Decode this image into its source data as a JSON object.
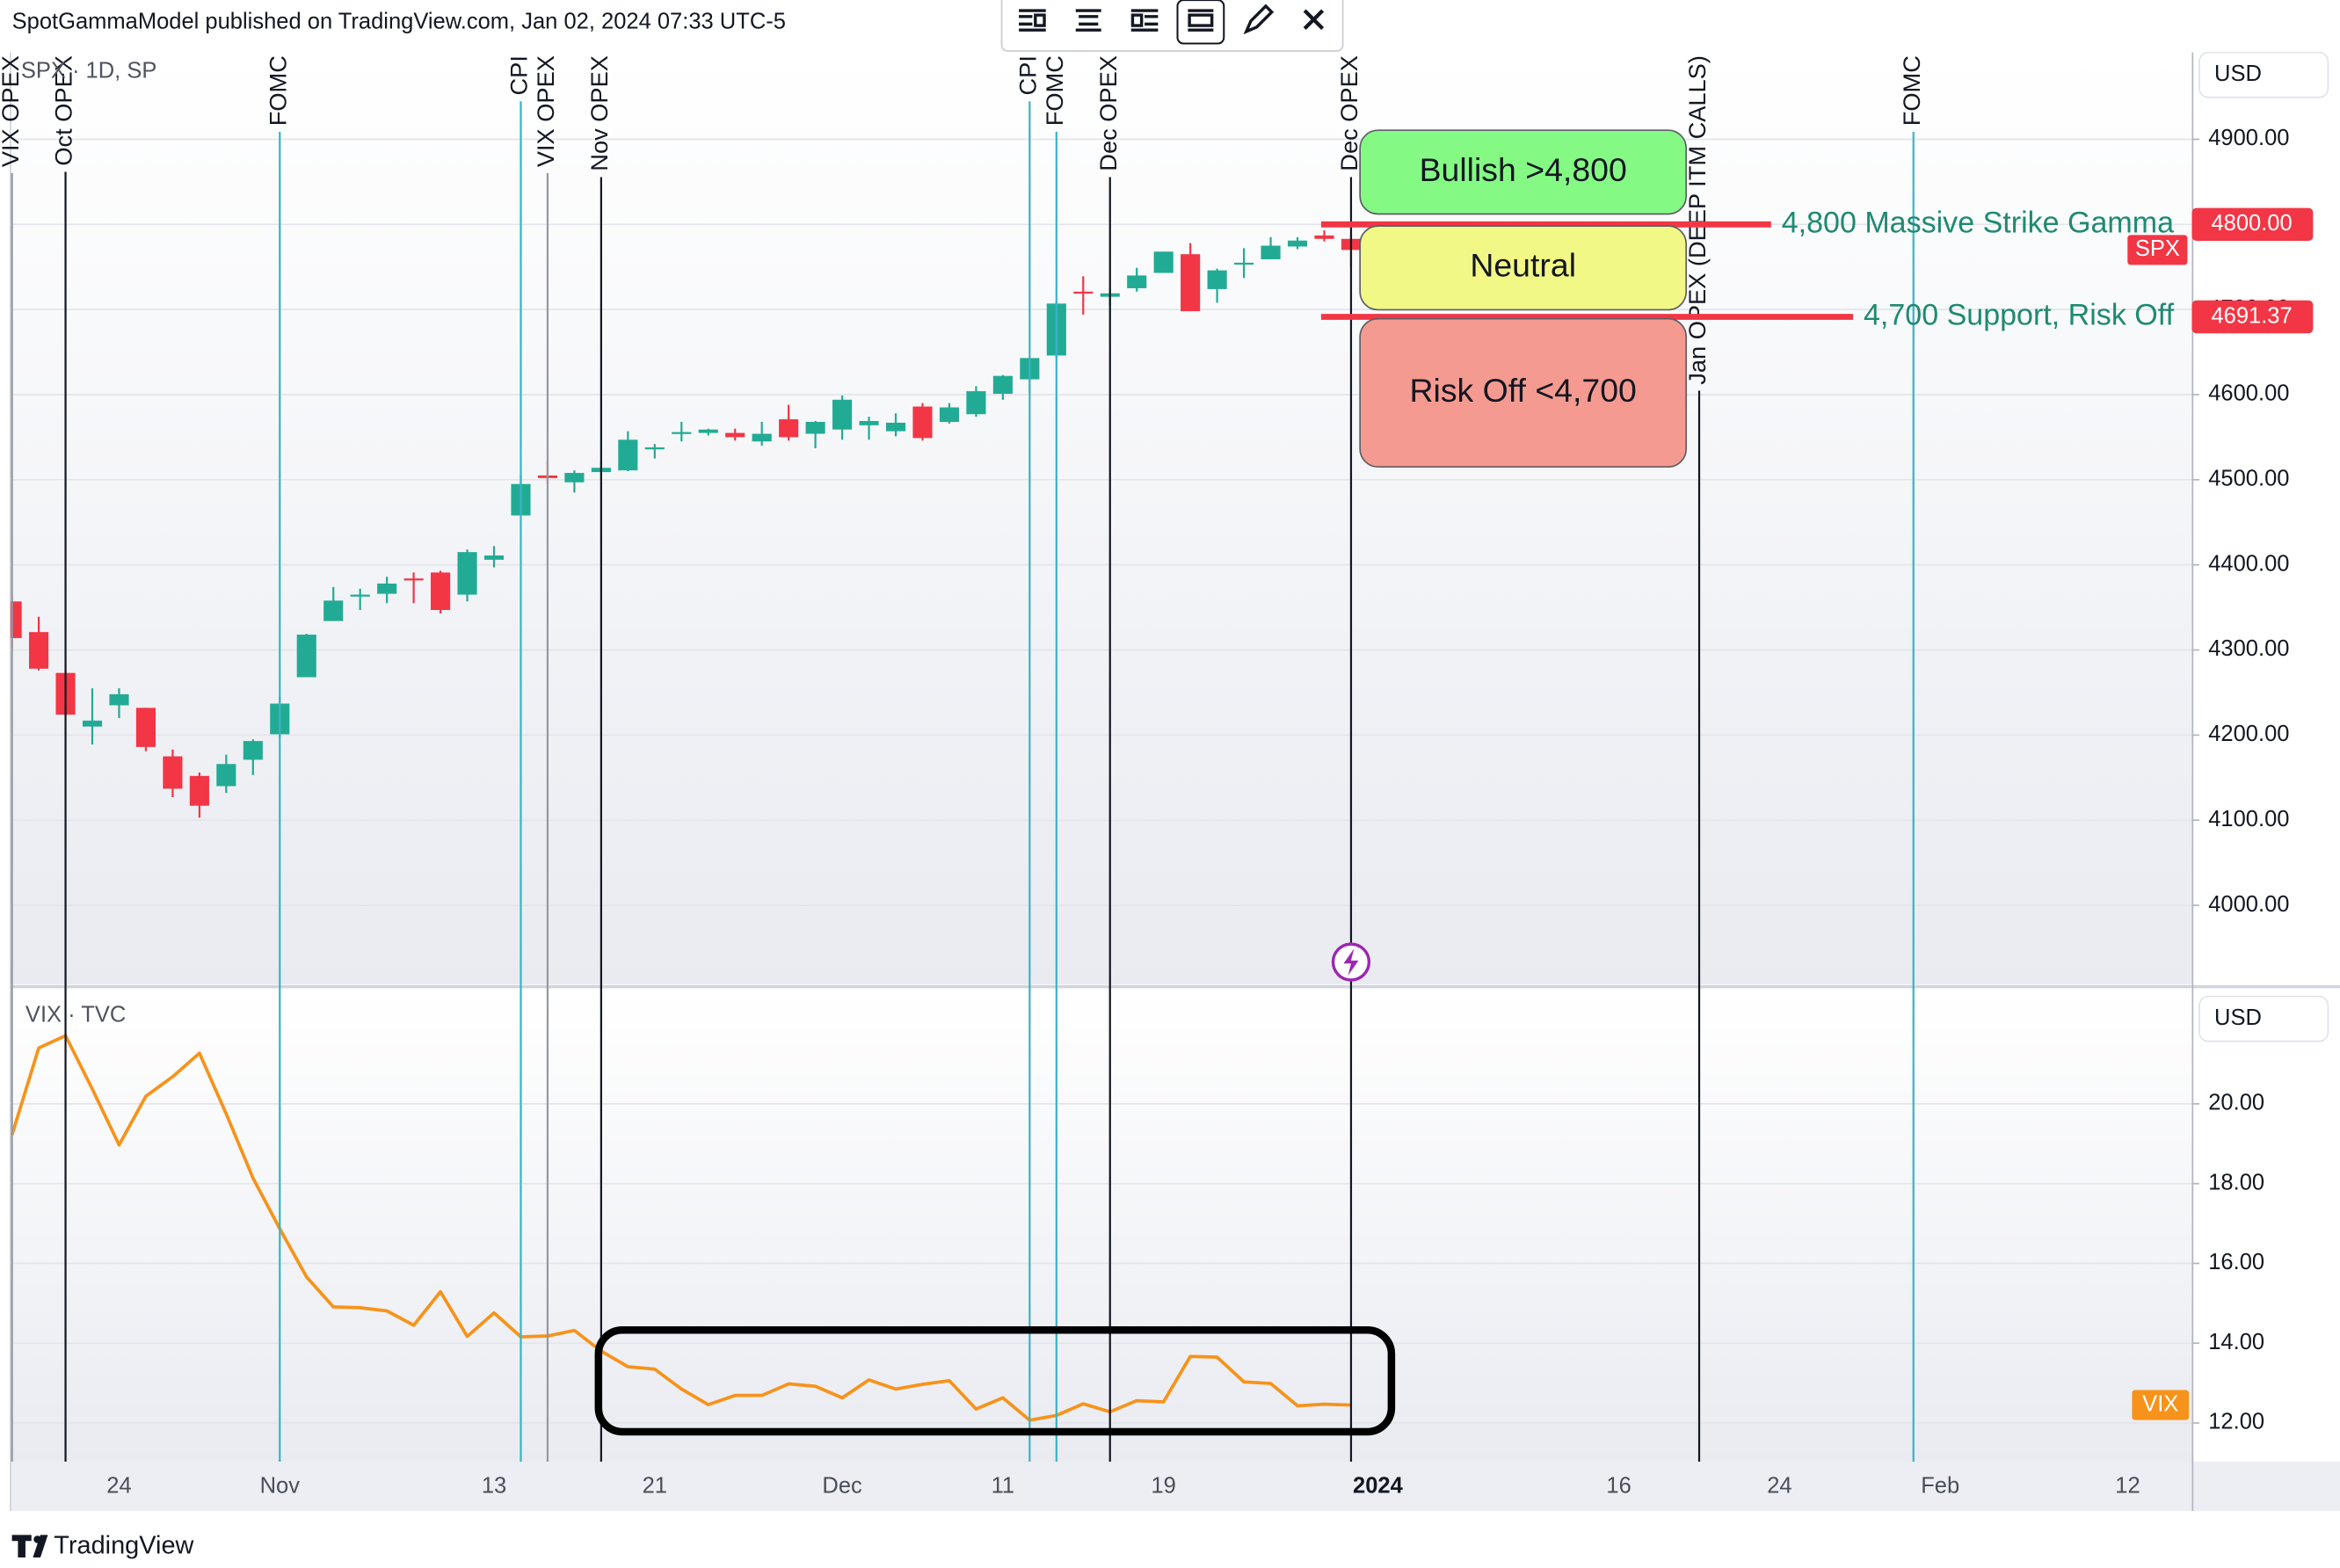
{
  "header": {
    "title": "SpotGammaModel published on TradingView.com, Jan 02, 2024 07:33 UTC-5"
  },
  "footer": {
    "brand": "TradingView"
  },
  "chart_data": [
    {
      "type": "candlestick",
      "title": "SPX · 1D, SP",
      "currency": "USD",
      "ylim": [
        3907,
        5002
      ],
      "yticks": [
        {
          "value": 4000,
          "label": "4000.00"
        },
        {
          "value": 4100,
          "label": "4100.00"
        },
        {
          "value": 4200,
          "label": "4200.00"
        },
        {
          "value": 4300,
          "label": "4300.00"
        },
        {
          "value": 4400,
          "label": "4400.00"
        },
        {
          "value": 4500,
          "label": "4500.00"
        },
        {
          "value": 4600,
          "label": "4600.00"
        },
        {
          "value": 4700,
          "label": "4700.00"
        },
        {
          "value": 4800,
          "label": "4800.00"
        },
        {
          "value": 4900,
          "label": "4900.00"
        }
      ],
      "grid": true,
      "up_color": "#22ab94",
      "down_color": "#f23645",
      "series": [
        {
          "name": "SPX",
          "color": "#f23645",
          "open": [
            4357,
            4321,
            4273,
            4210,
            4235,
            4232,
            4175,
            4152,
            4140,
            4171,
            4201,
            4268,
            4334,
            4364,
            4366,
            4384,
            4391,
            4365,
            4406,
            4458,
            4505,
            4497,
            4509,
            4511,
            4538,
            4554,
            4555,
            4555,
            4545,
            4571,
            4554,
            4559,
            4564,
            4557,
            4586,
            4568,
            4577,
            4601,
            4618,
            4646,
            4721,
            4715,
            4725,
            4743,
            4765,
            4724,
            4753,
            4759,
            4774,
            4787,
            4783,
            null,
            null,
            null,
            null,
            null,
            null,
            null,
            null,
            null,
            null,
            null,
            null,
            null,
            null,
            null,
            null,
            null,
            null,
            null,
            null,
            null,
            null,
            null,
            null,
            null,
            null,
            null,
            null,
            null,
            null,
            null
          ],
          "high": [
            4364,
            4339,
            4276,
            4255,
            4255,
            4232,
            4183,
            4156,
            4177,
            4195,
            4245,
            4319,
            4374,
            4372,
            4386,
            4391,
            4393,
            4418,
            4422,
            4506,
            4521,
            4511,
            4521,
            4557,
            4542,
            4568,
            4560,
            4560,
            4568,
            4588,
            4569,
            4599,
            4574,
            4578,
            4590,
            4590,
            4610,
            4623,
            4643,
            4709,
            4739,
            4725,
            4749,
            4768,
            4778,
            4748,
            4772,
            4785,
            4785,
            4793,
            4789,
            null,
            null,
            null,
            null,
            null,
            null,
            null,
            null,
            null,
            null,
            null,
            null,
            null,
            null,
            null,
            null,
            null,
            null,
            null,
            null,
            null,
            null,
            null,
            null,
            null,
            null,
            null,
            null,
            null,
            null,
            null
          ],
          "low": [
            4303,
            4276,
            4223,
            4189,
            4220,
            4181,
            4127,
            4103,
            4132,
            4153,
            4197,
            4268,
            4334,
            4347,
            4355,
            4355,
            4343,
            4357,
            4397,
            4458,
            4496,
            4485,
            4500,
            4510,
            4525,
            4545,
            4552,
            4546,
            4540,
            4546,
            4537,
            4547,
            4547,
            4551,
            4546,
            4566,
            4574,
            4594,
            4601,
            4643,
            4694,
            4705,
            4721,
            4743,
            4698,
            4708,
            4737,
            4759,
            4771,
            4780,
            4751,
            null,
            null,
            null,
            null,
            null,
            null,
            null,
            null,
            null,
            null,
            null,
            null,
            null,
            null,
            null,
            null,
            null,
            null,
            null,
            null,
            null,
            null,
            null,
            null,
            null,
            null,
            null,
            null,
            null,
            null,
            null
          ],
          "close": [
            4314,
            4278,
            4224,
            4217,
            4248,
            4186,
            4137,
            4117,
            4166,
            4193,
            4237,
            4318,
            4358,
            4365,
            4378,
            4383,
            4347,
            4415,
            4411,
            4495,
            4502,
            4508,
            4514,
            4547,
            4538,
            4556,
            4559,
            4550,
            4554,
            4550,
            4568,
            4594,
            4569,
            4567,
            4549,
            4585,
            4604,
            4622,
            4643,
            4707,
            4719,
            4719,
            4740,
            4768,
            4698,
            4746,
            4755,
            4775,
            4781,
            4783,
            4770,
            null,
            null,
            null,
            null,
            null,
            null,
            null,
            null,
            null,
            null,
            null,
            null,
            null,
            null,
            null,
            null,
            null,
            null,
            null,
            null,
            null,
            null,
            null,
            null,
            null,
            null,
            null,
            null,
            null,
            null,
            null
          ]
        }
      ],
      "levels": [
        {
          "value": 4800,
          "value_label": "4800.00",
          "text": "4,800 Massive Strike Gamma",
          "color": "#f23645"
        },
        {
          "value": 4691.37,
          "value_label": "4691.37",
          "text": "4,700 Support, Risk Off",
          "color": "#f23645"
        }
      ],
      "zones": [
        {
          "label": "Bullish >4,800",
          "color": "#84fa84"
        },
        {
          "label": "Neutral",
          "color": "#f2f885"
        },
        {
          "label": "Risk Off <4,700",
          "color": "#f59a90"
        }
      ],
      "events": [
        {
          "label": "VIX OPEX",
          "at": 0,
          "color": "#9598a1"
        },
        {
          "label": "Oct OPEX",
          "at": 2,
          "color": "#131722"
        },
        {
          "label": "FOMC",
          "at": 10,
          "color": "#3bb3c3"
        },
        {
          "label": "CPI",
          "at": 19,
          "color": "#3bb3c3"
        },
        {
          "label": "VIX OPEX",
          "at": 20,
          "color": "#9598a1"
        },
        {
          "label": "Nov OPEX",
          "at": 22,
          "color": "#131722"
        },
        {
          "label": "CPI",
          "at": 38,
          "color": "#3bb3c3"
        },
        {
          "label": "FOMC",
          "at": 39,
          "color": "#3bb3c3"
        },
        {
          "label": "Dec OPEX",
          "at": 41,
          "color": "#131722"
        },
        {
          "label": "Dec OPEX",
          "at": 50,
          "color": "#131722"
        },
        {
          "label": "Jan OPEX (DEEP ITM CALLS)",
          "at": 63,
          "color": "#131722"
        },
        {
          "label": "FOMC",
          "at": 71,
          "color": "#3bb3c3"
        }
      ]
    },
    {
      "type": "line",
      "title": "VIX · TVC",
      "currency": "USD",
      "categories": [
        null,
        null,
        null,
        null,
        "24",
        null,
        null,
        null,
        null,
        null,
        "Nov",
        null,
        null,
        null,
        null,
        null,
        null,
        null,
        "13",
        null,
        null,
        null,
        null,
        null,
        "21",
        null,
        null,
        null,
        null,
        null,
        null,
        "Dec",
        null,
        null,
        null,
        null,
        null,
        "11",
        null,
        null,
        null,
        null,
        null,
        "19",
        null,
        null,
        null,
        null,
        null,
        null,
        null,
        "2024",
        null,
        null,
        null,
        null,
        null,
        null,
        null,
        null,
        "16",
        null,
        null,
        null,
        null,
        null,
        "24",
        null,
        null,
        null,
        null,
        null,
        "Feb",
        null,
        null,
        null,
        null,
        null,
        null,
        "12",
        null,
        null
      ],
      "ylim": [
        11.03,
        22.88
      ],
      "yticks": [
        {
          "value": 12,
          "label": "12.00"
        },
        {
          "value": 14,
          "label": "14.00"
        },
        {
          "value": 16,
          "label": "16.00"
        },
        {
          "value": 18,
          "label": "18.00"
        },
        {
          "value": 20,
          "label": "20.00"
        }
      ],
      "grid": true,
      "series": [
        {
          "name": "VIX",
          "color": "#f7931a",
          "values": [
            19.22,
            21.4,
            21.71,
            20.37,
            18.97,
            20.19,
            20.68,
            21.27,
            19.75,
            18.14,
            16.87,
            15.66,
            14.91,
            14.89,
            14.81,
            14.45,
            15.29,
            14.17,
            14.76,
            14.16,
            14.18,
            14.32,
            13.8,
            13.41,
            13.35,
            12.85,
            12.46,
            12.69,
            12.69,
            12.98,
            12.92,
            12.63,
            13.08,
            12.85,
            12.97,
            13.06,
            12.35,
            12.63,
            12.07,
            12.19,
            12.48,
            12.28,
            12.56,
            12.53,
            13.67,
            13.65,
            13.03,
            12.99,
            12.43,
            12.47,
            12.45,
            null,
            null,
            null,
            null,
            null,
            null,
            null,
            null,
            null,
            null,
            null,
            null,
            null,
            null,
            null,
            null,
            null,
            null,
            null,
            null,
            null,
            null,
            null,
            null,
            null,
            null,
            null,
            null,
            null,
            null,
            null
          ]
        }
      ]
    }
  ]
}
